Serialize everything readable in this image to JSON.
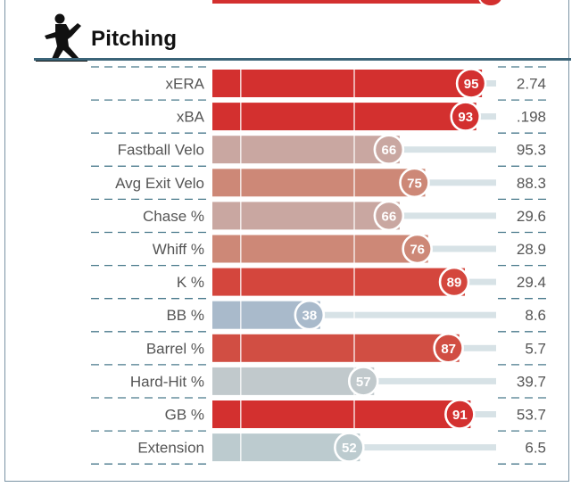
{
  "section": {
    "title": "Pitching",
    "icon": "pitcher-icon"
  },
  "chart_data": {
    "type": "bar",
    "orientation": "horizontal",
    "xlim": [
      0,
      100
    ],
    "categories": [
      "xERA",
      "xBA",
      "Fastball Velo",
      "Avg Exit Velo",
      "Chase %",
      "Whiff %",
      "K %",
      "BB %",
      "Barrel %",
      "Hard-Hit %",
      "GB %",
      "Extension"
    ],
    "percentiles": [
      95,
      93,
      66,
      75,
      66,
      76,
      89,
      38,
      87,
      57,
      91,
      52
    ],
    "values": [
      "2.74",
      ".198",
      "95.3",
      "88.3",
      "29.6",
      "28.9",
      "29.4",
      "8.6",
      "5.7",
      "39.7",
      "53.7",
      "6.5"
    ],
    "colors": [
      "#d3302f",
      "#d3302f",
      "#c9a7a1",
      "#cd8877",
      "#c9a7a1",
      "#cd8877",
      "#d4463d",
      "#a9bacb",
      "#d14e43",
      "#c1c9cc",
      "#d3302f",
      "#bccbcf"
    ],
    "gridlines_at": [
      0,
      50,
      100
    ]
  }
}
